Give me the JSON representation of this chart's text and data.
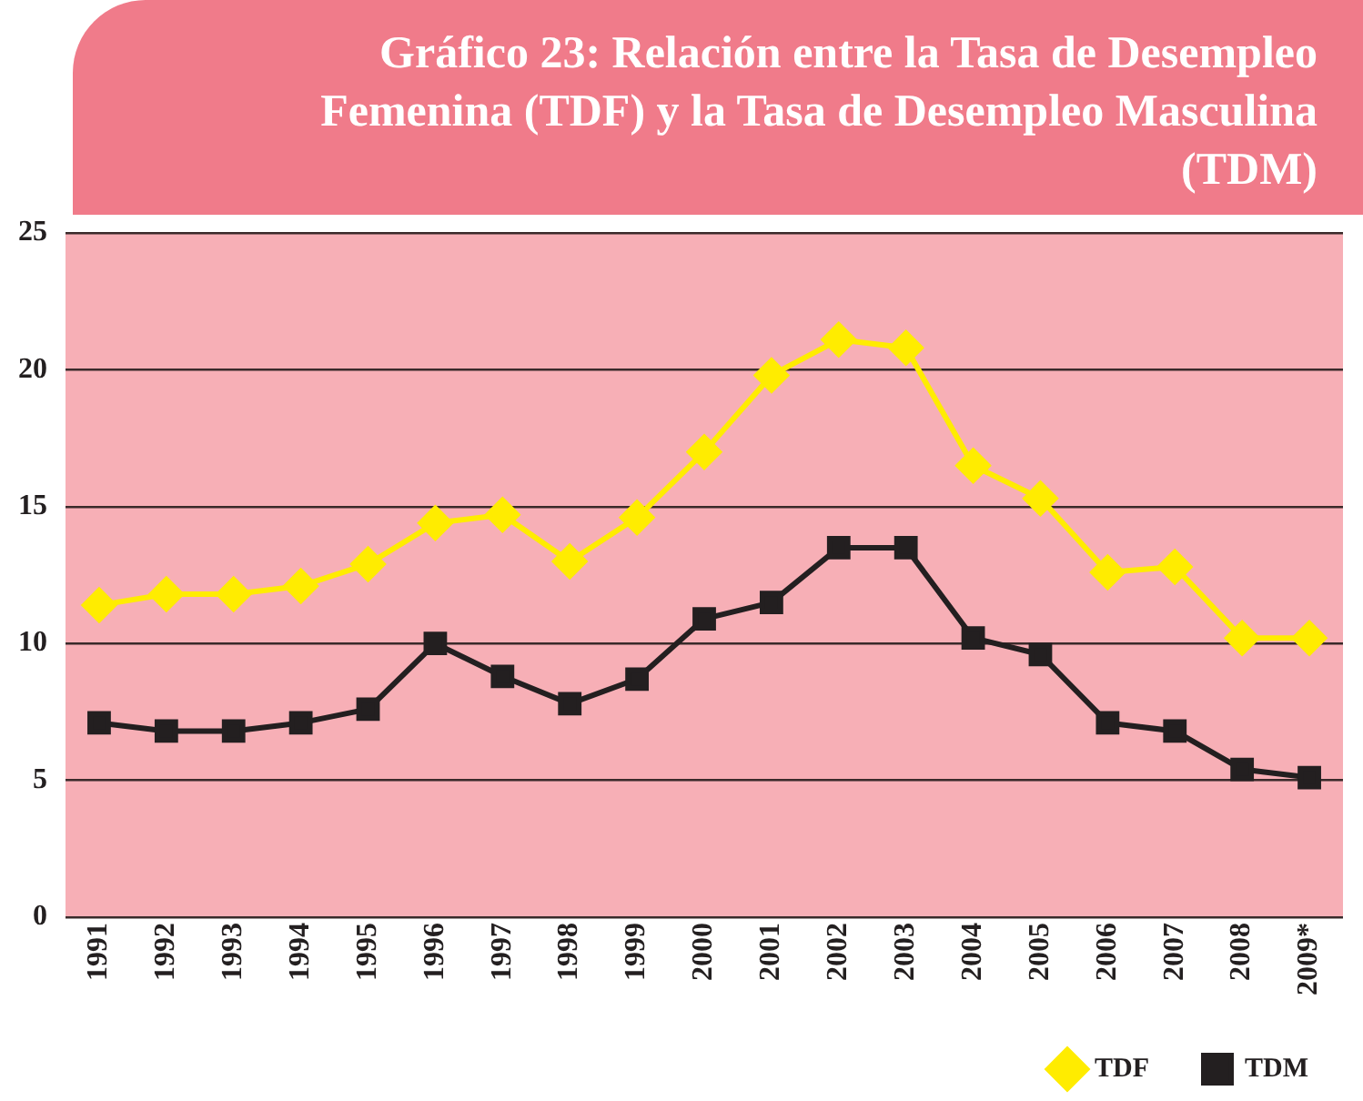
{
  "chart_data": {
    "type": "line",
    "title": "Gráfico 23: Relación entre la Tasa de Desempleo Femenina (TDF) y la Tasa de Desempleo Masculina (TDM)",
    "categories": [
      "1991",
      "1992",
      "1993",
      "1994",
      "1995",
      "1996",
      "1997",
      "1998",
      "1999",
      "2000",
      "2001",
      "2002",
      "2003",
      "2004",
      "2005",
      "2006",
      "2007",
      "2008",
      "2009*"
    ],
    "series": [
      {
        "name": "TDF",
        "color": "#ffec00",
        "marker": "diamond",
        "values": [
          11.4,
          11.8,
          11.8,
          12.1,
          12.9,
          14.4,
          14.7,
          13.0,
          14.6,
          17.0,
          19.8,
          21.1,
          20.8,
          16.5,
          15.3,
          12.6,
          12.8,
          10.2,
          10.2
        ]
      },
      {
        "name": "TDM",
        "color": "#231f20",
        "marker": "square",
        "values": [
          7.1,
          6.8,
          6.8,
          7.1,
          7.6,
          10.0,
          8.8,
          7.8,
          8.7,
          10.9,
          11.5,
          13.5,
          13.5,
          10.2,
          9.6,
          7.1,
          6.8,
          5.4,
          5.1
        ]
      }
    ],
    "ylim": [
      0,
      25
    ],
    "yticks": [
      0,
      5,
      10,
      15,
      20,
      25
    ],
    "grid": "y",
    "legend": "bottom right"
  }
}
